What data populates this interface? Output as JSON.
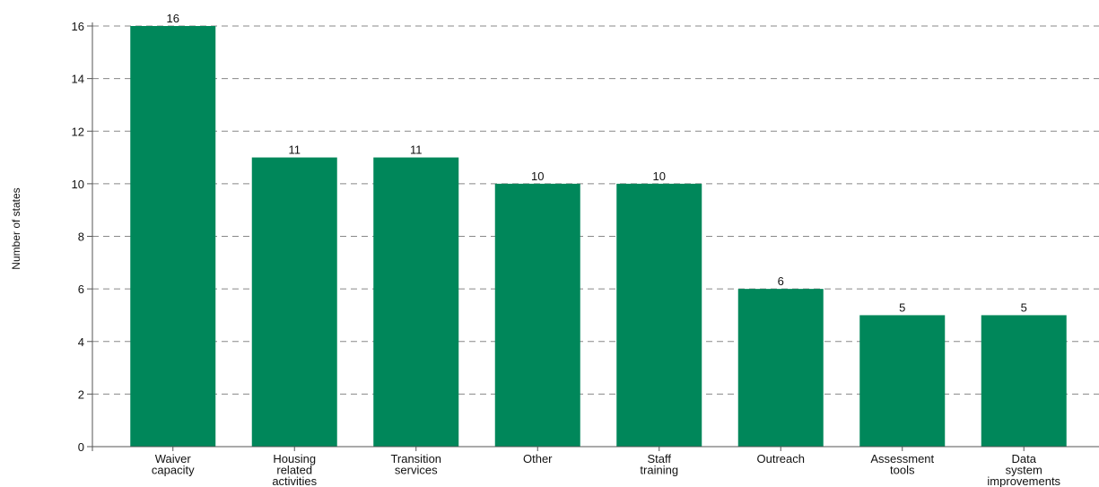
{
  "chart_data": {
    "type": "bar",
    "categories": [
      [
        "Waiver",
        "capacity"
      ],
      [
        "Housing",
        "related",
        "activities"
      ],
      [
        "Transition",
        "services"
      ],
      [
        "Other"
      ],
      [
        "Staff",
        "training"
      ],
      [
        "Outreach"
      ],
      [
        "Assessment",
        "tools"
      ],
      [
        "Data",
        "system",
        "improvements"
      ]
    ],
    "values": [
      16,
      11,
      11,
      10,
      10,
      6,
      5,
      5
    ],
    "data_labels": [
      "16",
      "11",
      "11",
      "10",
      "10",
      "6",
      "5",
      "5"
    ],
    "ylabel": "Number of states",
    "ylim": [
      0,
      16
    ],
    "yticks": [
      0,
      2,
      4,
      6,
      8,
      10,
      12,
      14,
      16
    ],
    "grid": "horizontal dashed",
    "bar_color": "#00875a",
    "grid_color": "#888888",
    "axis_color": "#555555"
  }
}
